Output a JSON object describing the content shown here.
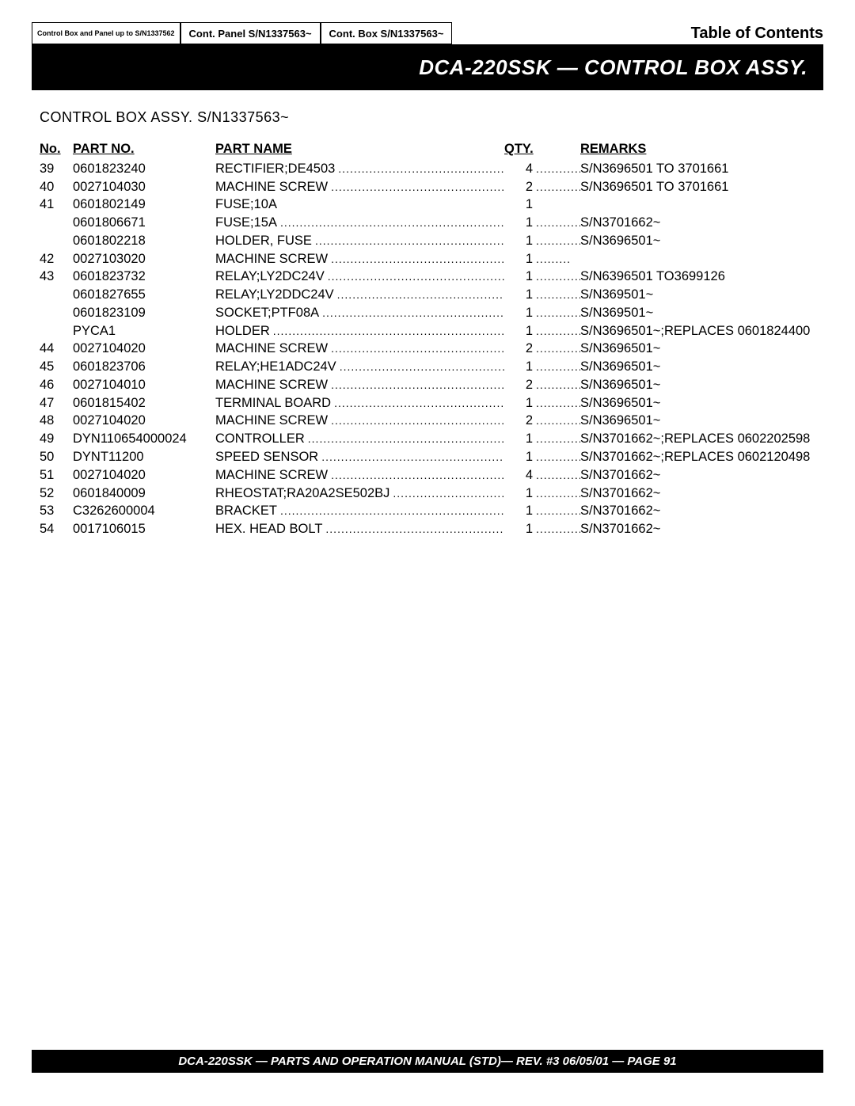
{
  "nav": {
    "tab1": "Control Box and Panel up to S/N1337562",
    "tab2": "Cont. Panel S/N1337563~",
    "tab3": "Cont. Box S/N1337563~",
    "toc": "Table of Contents"
  },
  "band_title": "DCA-220SSK — CONTROL BOX ASSY.",
  "subtitle": "CONTROL BOX ASSY. S/N1337563~",
  "headers": {
    "no": "No.",
    "part_no": "PART NO.",
    "part_name": "PART NAME",
    "qty": "QTY.",
    "remarks": "REMARKS"
  },
  "rows": [
    {
      "no": "39",
      "part": "0601823240",
      "name": "RECTIFIER;DE4503",
      "qty": "4",
      "rem": "S/N3696501 TO 3701661"
    },
    {
      "no": "40",
      "part": "0027104030",
      "name": "MACHINE SCREW",
      "qty": "2",
      "rem": "S/N3696501 TO 3701661"
    },
    {
      "no": "41",
      "part": "0601802149",
      "name": "FUSE;10A",
      "qty": "1",
      "rem": "",
      "nodots": true
    },
    {
      "no": "",
      "part": "0601806671",
      "name": "FUSE;15A",
      "qty": "1",
      "rem": "S/N3701662~"
    },
    {
      "no": "",
      "part": "0601802218",
      "name": "HOLDER, FUSE",
      "qty": "1",
      "rem": "S/N3696501~"
    },
    {
      "no": "42",
      "part": "0027103020",
      "name": "MACHINE SCREW",
      "qty": "1",
      "rem": ""
    },
    {
      "no": "43",
      "part": "0601823732",
      "name": "RELAY;LY2DC24V",
      "qty": "1",
      "rem": "S/N6396501 TO3699126"
    },
    {
      "no": "",
      "part": "0601827655",
      "name": "RELAY;LY2DDC24V",
      "qty": "1",
      "rem": "S/N369501~"
    },
    {
      "no": "",
      "part": "0601823109",
      "name": "SOCKET;PTF08A",
      "qty": "1",
      "rem": "S/N369501~"
    },
    {
      "no": "",
      "part": "PYCA1",
      "name": "HOLDER",
      "qty": "1",
      "rem": "S/N3696501~;REPLACES 0601824400"
    },
    {
      "no": "44",
      "part": "0027104020",
      "name": "MACHINE SCREW",
      "qty": "2",
      "rem": "S/N3696501~"
    },
    {
      "no": "45",
      "part": "0601823706",
      "name": "RELAY;HE1ADC24V",
      "qty": "1",
      "rem": " S/N3696501~"
    },
    {
      "no": "46",
      "part": "0027104010",
      "name": "MACHINE SCREW",
      "qty": "2",
      "rem": "S/N3696501~"
    },
    {
      "no": "47",
      "part": "0601815402",
      "name": "TERMINAL BOARD",
      "qty": "1",
      "rem": "S/N3696501~"
    },
    {
      "no": "48",
      "part": "0027104020",
      "name": "MACHINE SCREW",
      "qty": "2",
      "rem": "S/N3696501~"
    },
    {
      "no": "49",
      "part": "DYN110654000024",
      "name": "CONTROLLER",
      "qty": "1",
      "rem": "S/N3701662~;REPLACES 0602202598"
    },
    {
      "no": "50",
      "part": "DYNT11200",
      "name": "SPEED SENSOR",
      "qty": "1",
      "rem": "S/N3701662~;REPLACES 0602120498"
    },
    {
      "no": "51",
      "part": "0027104020",
      "name": "MACHINE SCREW",
      "qty": "4",
      "rem": "S/N3701662~"
    },
    {
      "no": "52",
      "part": "0601840009",
      "name": "RHEOSTAT;RA20A2SE502BJ",
      "qty": "1",
      "rem": "S/N3701662~"
    },
    {
      "no": "53",
      "part": "C3262600004",
      "name": "BRACKET",
      "qty": "1",
      "rem": "S/N3701662~"
    },
    {
      "no": "54",
      "part": "0017106015",
      "name": "HEX. HEAD BOLT",
      "qty": "1",
      "rem": "S/N3701662~"
    }
  ],
  "footer": "DCA-220SSK — PARTS AND OPERATION  MANUAL (STD)— REV. #3  06/05/01 — PAGE 91",
  "dots": "............................................................................",
  "colors": {
    "black": "#000000",
    "white": "#ffffff"
  }
}
